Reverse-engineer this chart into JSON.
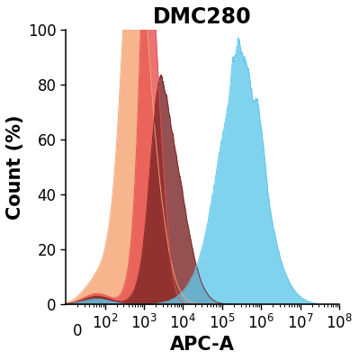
{
  "title": "DMC280",
  "xlabel": "APC-A",
  "ylabel": "Count (%)",
  "ylim": [
    0,
    100
  ],
  "yticks": [
    0,
    20,
    40,
    60,
    80,
    100
  ],
  "background_color": "#ffffff",
  "curves": [
    {
      "color_fill": "#F5A878",
      "color_line": "#F5A878",
      "alpha_fill": 0.85,
      "alpha_line": 0.95,
      "label": "orange"
    },
    {
      "color_fill": "#E85050",
      "color_line": "#E85050",
      "alpha_fill": 0.8,
      "alpha_line": 0.95,
      "label": "red"
    },
    {
      "color_fill": "#7B2525",
      "color_line": "#7B2525",
      "alpha_fill": 0.8,
      "alpha_line": 0.95,
      "label": "maroon"
    },
    {
      "color_fill": "#60C8EA",
      "color_line": "#60C8EA",
      "alpha_fill": 0.8,
      "alpha_line": 0.95,
      "label": "blue"
    }
  ],
  "title_fontsize": 17,
  "axis_label_fontsize": 15,
  "tick_fontsize": 12
}
